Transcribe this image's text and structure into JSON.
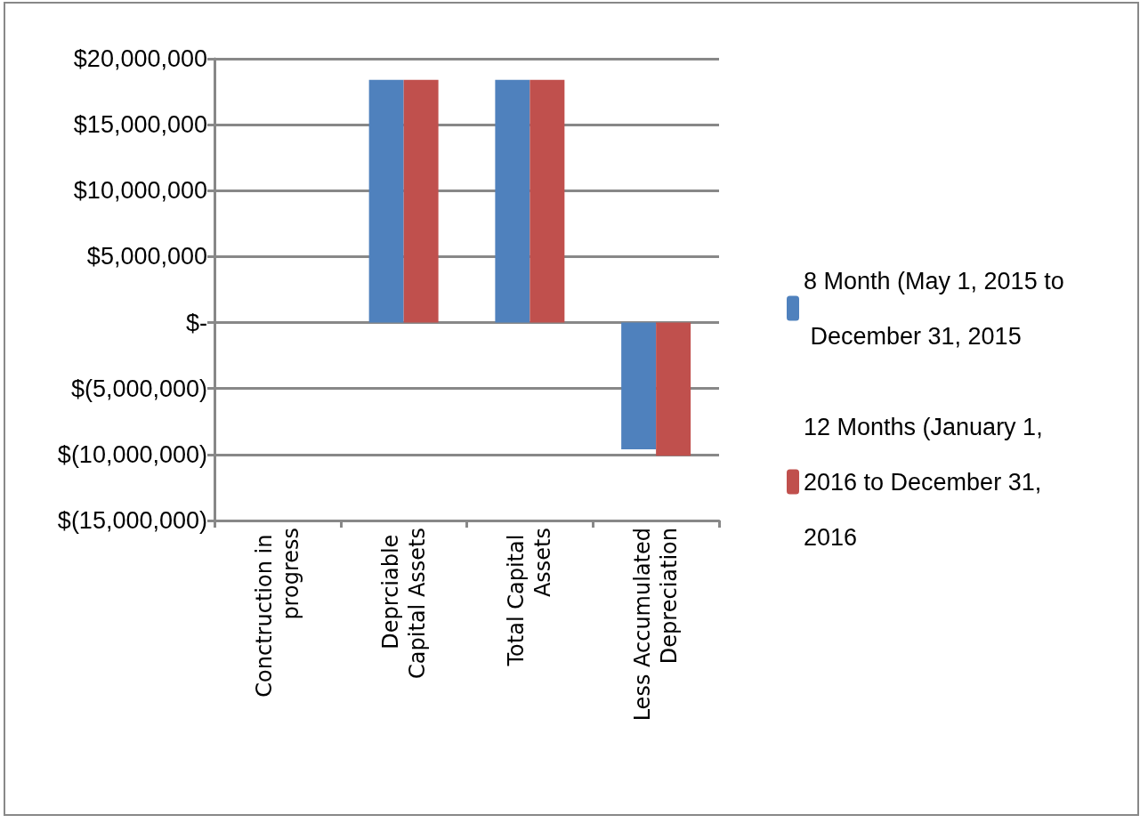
{
  "chart_data": {
    "type": "bar",
    "categories": [
      "Conctruction in progress",
      "Deprciable Capital Assets",
      "Total Capital Assets",
      "Less Accumulated Depreciation"
    ],
    "series": [
      {
        "name": "8 Month (May 1, 2015 to December 31, 2015",
        "color": "#4f81bd",
        "values": [
          0,
          18400000,
          18400000,
          -9600000
        ]
      },
      {
        "name": "12 Months (January 1, 2016 to December 31, 2016",
        "color": "#c0504d",
        "values": [
          0,
          18400000,
          18400000,
          -10100000
        ]
      }
    ],
    "ylim": [
      -15000000,
      20000000
    ],
    "yticks": [
      {
        "value": -15000000,
        "label": "$(15,000,000)"
      },
      {
        "value": -10000000,
        "label": "$(10,000,000)"
      },
      {
        "value": -5000000,
        "label": "$(5,000,000)"
      },
      {
        "value": 0,
        "label": "$-"
      },
      {
        "value": 5000000,
        "label": "$5,000,000"
      },
      {
        "value": 10000000,
        "label": "$10,000,000"
      },
      {
        "value": 15000000,
        "label": "$15,000,000"
      },
      {
        "value": 20000000,
        "label": "$20,000,000"
      }
    ],
    "grid": "y",
    "legend": "right"
  }
}
